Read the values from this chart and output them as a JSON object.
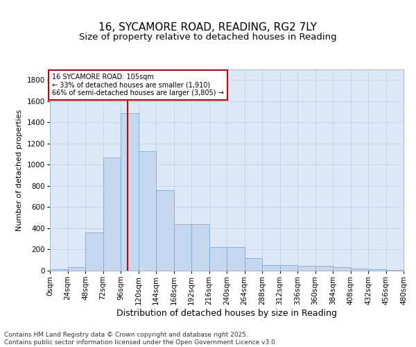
{
  "title": "16, SYCAMORE ROAD, READING, RG2 7LY",
  "subtitle": "Size of property relative to detached houses in Reading",
  "xlabel": "Distribution of detached houses by size in Reading",
  "ylabel": "Number of detached properties",
  "footer": "Contains HM Land Registry data © Crown copyright and database right 2025.\nContains public sector information licensed under the Open Government Licence v3.0.",
  "bin_labels": [
    "0sqm",
    "24sqm",
    "48sqm",
    "72sqm",
    "96sqm",
    "120sqm",
    "144sqm",
    "168sqm",
    "192sqm",
    "216sqm",
    "240sqm",
    "264sqm",
    "288sqm",
    "312sqm",
    "336sqm",
    "360sqm",
    "384sqm",
    "408sqm",
    "432sqm",
    "456sqm",
    "480sqm"
  ],
  "bin_edges": [
    0,
    24,
    48,
    72,
    96,
    120,
    144,
    168,
    192,
    216,
    240,
    264,
    288,
    312,
    336,
    360,
    384,
    408,
    432,
    456,
    480
  ],
  "bar_heights": [
    10,
    35,
    360,
    1070,
    1490,
    1130,
    760,
    440,
    440,
    225,
    225,
    115,
    55,
    55,
    45,
    45,
    30,
    20,
    10,
    5,
    0
  ],
  "bar_color": "#c5d8f0",
  "bar_edge_color": "#7aadd4",
  "grid_color": "#c8d4e8",
  "background_color": "#ffffff",
  "plot_bg_color": "#dce8f8",
  "vline_x": 105,
  "vline_color": "#cc0000",
  "annotation_text": "16 SYCAMORE ROAD: 105sqm\n← 33% of detached houses are smaller (1,910)\n66% of semi-detached houses are larger (3,805) →",
  "annotation_box_color": "#ffffff",
  "annotation_box_edgecolor": "#cc0000",
  "ylim": [
    0,
    1900
  ],
  "yticks": [
    0,
    200,
    400,
    600,
    800,
    1000,
    1200,
    1400,
    1600,
    1800
  ],
  "title_fontsize": 11,
  "subtitle_fontsize": 9.5,
  "xlabel_fontsize": 9,
  "ylabel_fontsize": 8,
  "tick_fontsize": 7.5,
  "footer_fontsize": 6.5,
  "annot_fontsize": 7
}
